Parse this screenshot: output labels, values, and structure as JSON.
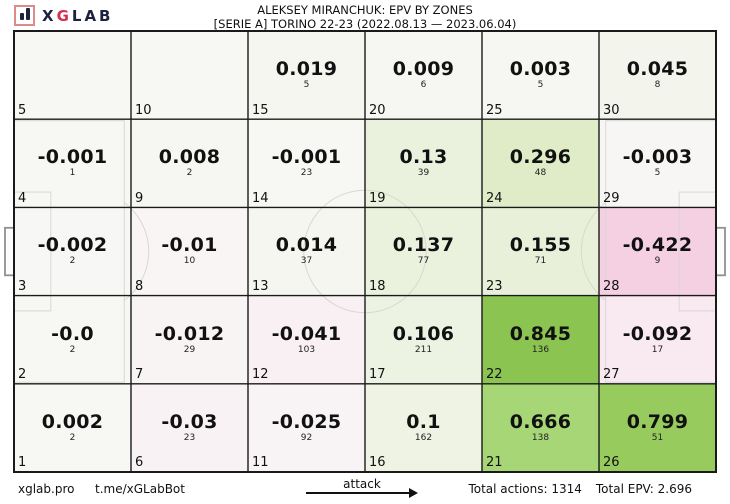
{
  "header": {
    "logo_x": "X",
    "logo_g": "G",
    "logo_lab": "LAB"
  },
  "footer": {
    "site": "xglab.pro",
    "bot": "t.me/xGLabBot",
    "attack_label": "attack",
    "total_actions": "Total actions: 1314",
    "total_epv": "Total EPV: 2.696"
  },
  "chart_data": {
    "type": "heatmap",
    "title": "ALEKSEY MIRANCHUK: EPV BY ZONES",
    "subtitle": "[SERIE A] TORINO 22-23 (2022.08.13 — 2023.06.04)",
    "grid": {
      "cols": 6,
      "rows": 5
    },
    "attack_direction": "right",
    "totals": {
      "actions": 1314,
      "epv": 2.696
    },
    "legend": "zones numbered 1-30, value = EPV, small number = action count, bottom-left corner = zone id",
    "zones": [
      {
        "zone": 5,
        "epv": "",
        "actions": "",
        "color": "#f7f7f4"
      },
      {
        "zone": 10,
        "epv": "",
        "actions": "",
        "color": "#f7f7f4"
      },
      {
        "zone": 15,
        "epv": "0.019",
        "actions": 5,
        "color": "#f5f6f0"
      },
      {
        "zone": 20,
        "epv": "0.009",
        "actions": 6,
        "color": "#f6f7f2"
      },
      {
        "zone": 25,
        "epv": "0.003",
        "actions": 5,
        "color": "#f6f7f2"
      },
      {
        "zone": 30,
        "epv": "0.045",
        "actions": 8,
        "color": "#f3f5ec"
      },
      {
        "zone": 4,
        "epv": "-0.001",
        "actions": 1,
        "color": "#f7f7f4"
      },
      {
        "zone": 9,
        "epv": "0.008",
        "actions": 2,
        "color": "#f6f7f2"
      },
      {
        "zone": 14,
        "epv": "-0.001",
        "actions": 23,
        "color": "#f7f7f4"
      },
      {
        "zone": 19,
        "epv": "0.13",
        "actions": 39,
        "color": "#eaf1dd"
      },
      {
        "zone": 24,
        "epv": "0.296",
        "actions": 48,
        "color": "#dfecc7"
      },
      {
        "zone": 29,
        "epv": "-0.003",
        "actions": 5,
        "color": "#f8f6f5"
      },
      {
        "zone": 3,
        "epv": "-0.002",
        "actions": 2,
        "color": "#f7f7f5"
      },
      {
        "zone": 8,
        "epv": "-0.01",
        "actions": 10,
        "color": "#f8f5f4"
      },
      {
        "zone": 13,
        "epv": "0.014",
        "actions": 37,
        "color": "#f5f6f0"
      },
      {
        "zone": 18,
        "epv": "0.137",
        "actions": 77,
        "color": "#eaf1dc"
      },
      {
        "zone": 23,
        "epv": "0.155",
        "actions": 71,
        "color": "#e9f0da"
      },
      {
        "zone": 28,
        "epv": "-0.422",
        "actions": 9,
        "color": "#f5d0e2"
      },
      {
        "zone": 2,
        "epv": "-0.0",
        "actions": 2,
        "color": "#f7f7f4"
      },
      {
        "zone": 7,
        "epv": "-0.012",
        "actions": 29,
        "color": "#f8f4f4"
      },
      {
        "zone": 12,
        "epv": "-0.041",
        "actions": 103,
        "color": "#f8f0f3"
      },
      {
        "zone": 17,
        "epv": "0.106",
        "actions": 211,
        "color": "#edf3e2"
      },
      {
        "zone": 22,
        "epv": "0.845",
        "actions": 136,
        "color": "#8cc451"
      },
      {
        "zone": 27,
        "epv": "-0.092",
        "actions": 17,
        "color": "#f9e9f1"
      },
      {
        "zone": 1,
        "epv": "0.002",
        "actions": 2,
        "color": "#f7f7f4"
      },
      {
        "zone": 6,
        "epv": "-0.03",
        "actions": 23,
        "color": "#f8f2f4"
      },
      {
        "zone": 11,
        "epv": "-0.025",
        "actions": 92,
        "color": "#f8f3f4"
      },
      {
        "zone": 16,
        "epv": "0.1",
        "actions": 162,
        "color": "#eef3e3"
      },
      {
        "zone": 21,
        "epv": "0.666",
        "actions": 138,
        "color": "#a7d677"
      },
      {
        "zone": 26,
        "epv": "0.799",
        "actions": 51,
        "color": "#97cb5e"
      }
    ]
  }
}
